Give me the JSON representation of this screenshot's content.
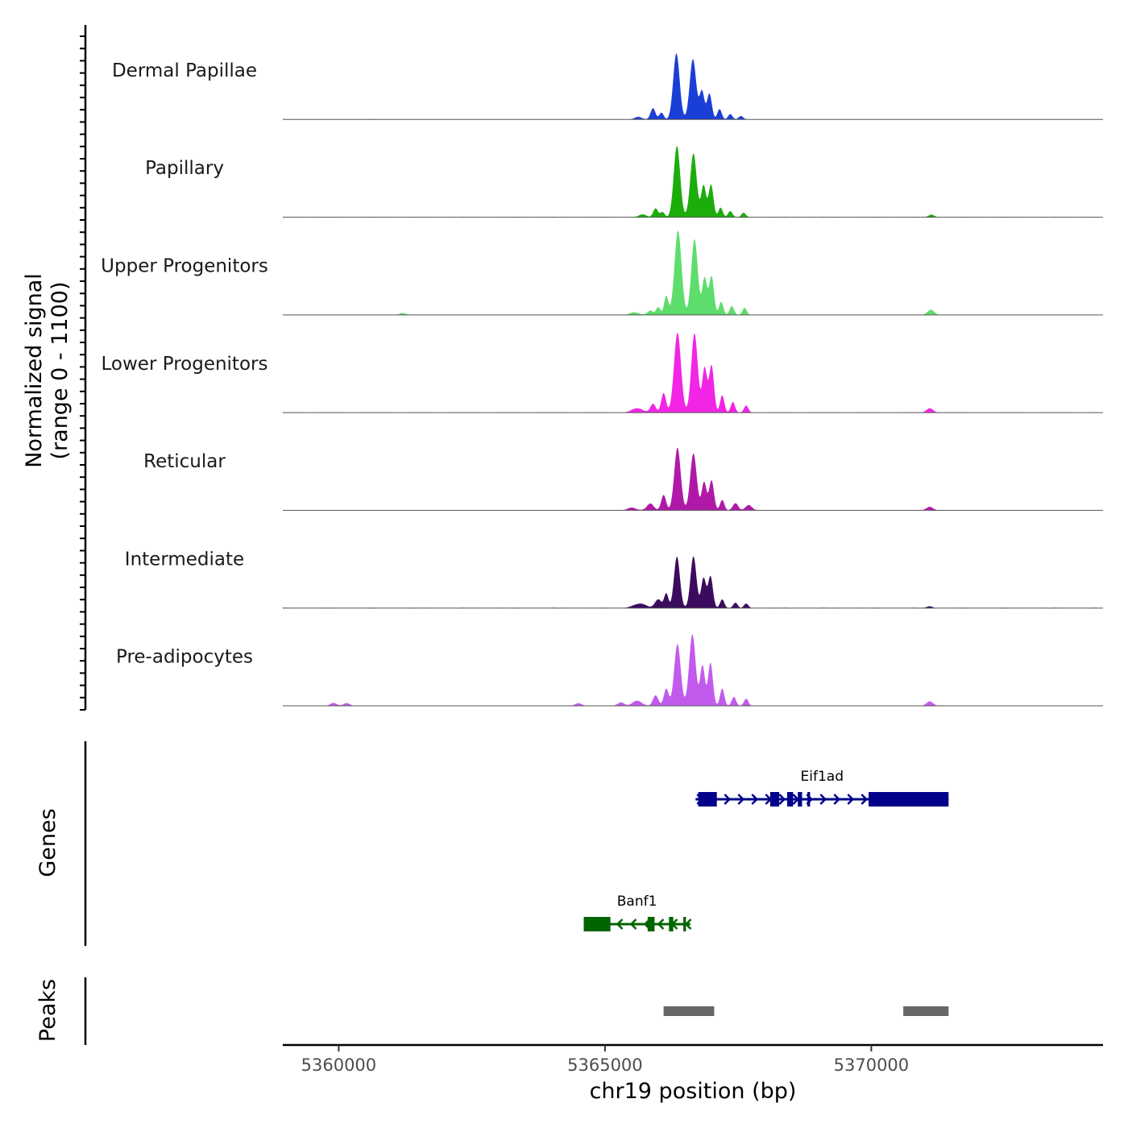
{
  "chart_data": {
    "type": "area",
    "xlabel": "chr19 position (bp)",
    "ylabel_line1": "Normalized signal",
    "ylabel_line2": "(range 0 - 1100)",
    "xlim": [
      5358950,
      5374350
    ],
    "ylim": [
      0,
      1100
    ],
    "x_ticks": [
      5360000,
      5365000,
      5370000
    ],
    "x_tick_labels": [
      "5360000",
      "5365000",
      "5370000"
    ],
    "coverage_tracks": [
      {
        "name": "Dermal Papillae",
        "color": "#1a3fd6",
        "peaks": [
          [
            5365620,
            0.03,
            60
          ],
          [
            5365900,
            0.13,
            45
          ],
          [
            5366060,
            0.08,
            40
          ],
          [
            5366340,
            0.77,
            60
          ],
          [
            5366650,
            0.7,
            60
          ],
          [
            5366820,
            0.33,
            45
          ],
          [
            5366960,
            0.3,
            45
          ],
          [
            5367150,
            0.12,
            40
          ],
          [
            5367350,
            0.06,
            40
          ],
          [
            5367550,
            0.04,
            40
          ]
        ]
      },
      {
        "name": "Papillary",
        "color": "#1cad0b",
        "peaks": [
          [
            5365700,
            0.03,
            70
          ],
          [
            5365950,
            0.1,
            45
          ],
          [
            5366080,
            0.06,
            40
          ],
          [
            5366350,
            0.83,
            60
          ],
          [
            5366660,
            0.74,
            60
          ],
          [
            5366850,
            0.37,
            45
          ],
          [
            5366990,
            0.38,
            45
          ],
          [
            5367170,
            0.11,
            40
          ],
          [
            5367350,
            0.07,
            40
          ],
          [
            5367600,
            0.05,
            40
          ],
          [
            5371130,
            0.03,
            50
          ]
        ]
      },
      {
        "name": "Upper Progenitors",
        "color": "#5ddd6c",
        "peaks": [
          [
            5365550,
            0.03,
            80
          ],
          [
            5365850,
            0.05,
            50
          ],
          [
            5366000,
            0.09,
            40
          ],
          [
            5366150,
            0.22,
            40
          ],
          [
            5366370,
            0.98,
            65
          ],
          [
            5366680,
            0.88,
            60
          ],
          [
            5366870,
            0.43,
            45
          ],
          [
            5367000,
            0.45,
            45
          ],
          [
            5367180,
            0.15,
            40
          ],
          [
            5367380,
            0.1,
            40
          ],
          [
            5367620,
            0.08,
            40
          ],
          [
            5361200,
            0.02,
            60
          ],
          [
            5371120,
            0.06,
            60
          ]
        ]
      },
      {
        "name": "Lower Progenitors",
        "color": "#f224e6",
        "peaks": [
          [
            5365600,
            0.05,
            100
          ],
          [
            5365900,
            0.1,
            50
          ],
          [
            5366100,
            0.23,
            45
          ],
          [
            5366360,
            0.93,
            65
          ],
          [
            5366680,
            0.92,
            60
          ],
          [
            5366870,
            0.52,
            45
          ],
          [
            5367000,
            0.55,
            45
          ],
          [
            5367200,
            0.2,
            40
          ],
          [
            5367400,
            0.12,
            40
          ],
          [
            5367650,
            0.08,
            40
          ],
          [
            5371100,
            0.05,
            60
          ]
        ]
      },
      {
        "name": "Reticular",
        "color": "#b019a8",
        "peaks": [
          [
            5365500,
            0.03,
            80
          ],
          [
            5365850,
            0.08,
            60
          ],
          [
            5366100,
            0.18,
            45
          ],
          [
            5366360,
            0.73,
            60
          ],
          [
            5366660,
            0.66,
            60
          ],
          [
            5366860,
            0.33,
            45
          ],
          [
            5367000,
            0.35,
            45
          ],
          [
            5367200,
            0.12,
            40
          ],
          [
            5367450,
            0.08,
            50
          ],
          [
            5367700,
            0.06,
            60
          ],
          [
            5371100,
            0.04,
            60
          ]
        ]
      },
      {
        "name": "Intermediate",
        "color": "#3b0c5e",
        "peaks": [
          [
            5365650,
            0.05,
            120
          ],
          [
            5366000,
            0.1,
            60
          ],
          [
            5366150,
            0.17,
            40
          ],
          [
            5366350,
            0.6,
            55
          ],
          [
            5366660,
            0.6,
            55
          ],
          [
            5366850,
            0.35,
            45
          ],
          [
            5366980,
            0.37,
            45
          ],
          [
            5367200,
            0.1,
            40
          ],
          [
            5367450,
            0.06,
            40
          ],
          [
            5367650,
            0.05,
            40
          ],
          [
            5371100,
            0.02,
            50
          ]
        ]
      },
      {
        "name": "Pre-adipocytes",
        "color": "#c25aee",
        "peaks": [
          [
            5364500,
            0.03,
            60
          ],
          [
            5365300,
            0.04,
            60
          ],
          [
            5365600,
            0.06,
            80
          ],
          [
            5365950,
            0.12,
            50
          ],
          [
            5366150,
            0.2,
            45
          ],
          [
            5366360,
            0.72,
            60
          ],
          [
            5366640,
            0.83,
            60
          ],
          [
            5366830,
            0.47,
            45
          ],
          [
            5366980,
            0.5,
            45
          ],
          [
            5367200,
            0.2,
            40
          ],
          [
            5367420,
            0.1,
            40
          ],
          [
            5367650,
            0.08,
            40
          ],
          [
            5359900,
            0.03,
            60
          ],
          [
            5360150,
            0.03,
            60
          ],
          [
            5371100,
            0.05,
            60
          ]
        ]
      }
    ],
    "genes_label": "Genes",
    "genes": [
      {
        "name": "Eif1ad",
        "strand": "+",
        "color": "#00008b",
        "start": 5366700,
        "end": 5371450,
        "exons": [
          [
            5366750,
            5367100
          ],
          [
            5368100,
            5368270
          ],
          [
            5368420,
            5368530
          ],
          [
            5368620,
            5368700
          ],
          [
            5368800,
            5368850
          ],
          [
            5369950,
            5371450
          ]
        ]
      },
      {
        "name": "Banf1",
        "strand": "-",
        "color": "#006400",
        "start": 5364600,
        "end": 5366600,
        "exons": [
          [
            5364600,
            5365100
          ],
          [
            5365800,
            5365930
          ],
          [
            5366200,
            5366280
          ],
          [
            5366470,
            5366520
          ]
        ]
      }
    ],
    "peaks_label": "Peaks",
    "peak_regions": [
      [
        5366100,
        5367050
      ],
      [
        5370600,
        5371450
      ]
    ],
    "peak_color": "#666666"
  }
}
